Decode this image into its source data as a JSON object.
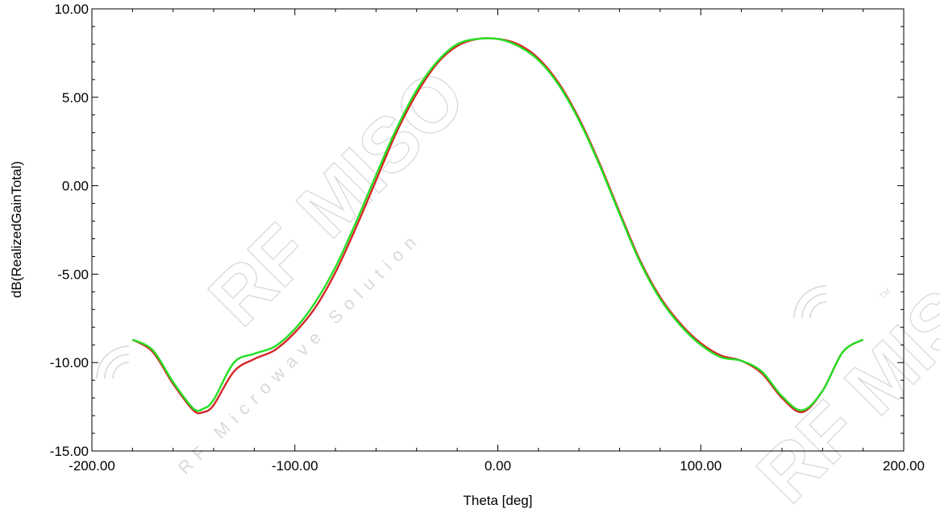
{
  "watermark": {
    "brand": "RF MISO",
    "tagline": "RF Microwave Solution",
    "tm": "TM"
  },
  "chart_data": {
    "type": "line",
    "title": "",
    "xlabel": "Theta [deg]",
    "ylabel": "dB(RealizedGainTotal)",
    "xlim": [
      -200,
      200
    ],
    "ylim": [
      -15,
      10
    ],
    "xticks": [
      -200,
      -100,
      0,
      100,
      200
    ],
    "yticks": [
      -15,
      -10,
      -5,
      0,
      5,
      10
    ],
    "xtick_labels": [
      "-200.00",
      "-100.00",
      "0.00",
      "100.00",
      "200.00"
    ],
    "ytick_labels": [
      "-15.00",
      "-10.00",
      "-5.00",
      "0.00",
      "5.00",
      "10.00"
    ],
    "grid": false,
    "legend": "none",
    "series": [
      {
        "color": "#d62728",
        "x": [
          -180,
          -170,
          -160,
          -150,
          -145,
          -140,
          -130,
          -120,
          -110,
          -100,
          -90,
          -80,
          -70,
          -60,
          -50,
          -40,
          -30,
          -20,
          -10,
          0,
          10,
          20,
          30,
          40,
          50,
          60,
          70,
          80,
          90,
          100,
          110,
          120,
          130,
          140,
          150,
          160,
          170,
          180
        ],
        "y": [
          -8.7,
          -9.4,
          -11.2,
          -12.7,
          -12.8,
          -12.4,
          -10.5,
          -9.8,
          -9.3,
          -8.3,
          -6.9,
          -4.9,
          -2.4,
          0.3,
          3.0,
          5.2,
          6.9,
          7.9,
          8.3,
          8.3,
          8.0,
          7.2,
          5.8,
          3.8,
          1.3,
          -1.5,
          -4.2,
          -6.3,
          -7.8,
          -8.9,
          -9.6,
          -9.9,
          -10.6,
          -12.0,
          -12.8,
          -11.6,
          -9.4,
          -8.7
        ]
      },
      {
        "color": "#22e022",
        "x": [
          -180,
          -170,
          -160,
          -150,
          -145,
          -140,
          -130,
          -120,
          -110,
          -100,
          -90,
          -80,
          -70,
          -60,
          -50,
          -40,
          -30,
          -20,
          -10,
          0,
          10,
          20,
          30,
          40,
          50,
          60,
          70,
          80,
          90,
          100,
          110,
          120,
          130,
          140,
          150,
          160,
          170,
          180
        ],
        "y": [
          -8.7,
          -9.3,
          -11.1,
          -12.6,
          -12.6,
          -12.1,
          -10.0,
          -9.5,
          -9.1,
          -8.1,
          -6.6,
          -4.6,
          -2.1,
          0.6,
          3.2,
          5.4,
          7.0,
          8.0,
          8.3,
          8.3,
          7.9,
          7.1,
          5.7,
          3.7,
          1.2,
          -1.6,
          -4.3,
          -6.4,
          -7.9,
          -9.0,
          -9.7,
          -9.9,
          -10.5,
          -11.9,
          -12.7,
          -11.6,
          -9.4,
          -8.7
        ]
      }
    ]
  }
}
